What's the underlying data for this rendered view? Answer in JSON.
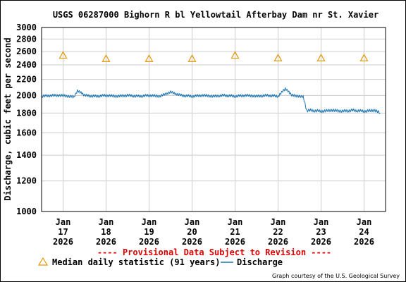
{
  "chart_data": {
    "type": "line",
    "title": "USGS 06287000 Bighorn R bl Yellowtail Afterbay Dam nr St. Xavier",
    "ylabel": "Discharge, cubic feet per second",
    "xlabel": "",
    "y_scale": "log",
    "ylim": [
      1000,
      3000
    ],
    "y_ticks": [
      1000,
      1200,
      1400,
      1600,
      1800,
      2000,
      2200,
      2400,
      2600,
      2800,
      3000
    ],
    "x_ticks": [
      {
        "month": "Jan",
        "day": "17",
        "year": "2026",
        "date": "2026-01-17"
      },
      {
        "month": "Jan",
        "day": "18",
        "year": "2026",
        "date": "2026-01-18"
      },
      {
        "month": "Jan",
        "day": "19",
        "year": "2026",
        "date": "2026-01-19"
      },
      {
        "month": "Jan",
        "day": "20",
        "year": "2026",
        "date": "2026-01-20"
      },
      {
        "month": "Jan",
        "day": "21",
        "year": "2026",
        "date": "2026-01-21"
      },
      {
        "month": "Jan",
        "day": "22",
        "year": "2026",
        "date": "2026-01-22"
      },
      {
        "month": "Jan",
        "day": "23",
        "year": "2026",
        "date": "2026-01-23"
      },
      {
        "month": "Jan",
        "day": "24",
        "year": "2026",
        "date": "2026-01-24"
      }
    ],
    "grid": true,
    "series": [
      {
        "name": "Discharge",
        "color": "#1f77b4",
        "points": [
          {
            "x": "2026-01-16 12:00",
            "y": 1990
          },
          {
            "x": "2026-01-16 18:00",
            "y": 2000
          },
          {
            "x": "2026-01-17 00:00",
            "y": 2000
          },
          {
            "x": "2026-01-17 06:00",
            "y": 1980
          },
          {
            "x": "2026-01-17 08:00",
            "y": 2060
          },
          {
            "x": "2026-01-17 12:00",
            "y": 2000
          },
          {
            "x": "2026-01-17 18:00",
            "y": 1990
          },
          {
            "x": "2026-01-18 00:00",
            "y": 2000
          },
          {
            "x": "2026-01-18 06:00",
            "y": 1990
          },
          {
            "x": "2026-01-18 12:00",
            "y": 2000
          },
          {
            "x": "2026-01-18 18:00",
            "y": 1990
          },
          {
            "x": "2026-01-19 00:00",
            "y": 2000
          },
          {
            "x": "2026-01-19 06:00",
            "y": 1990
          },
          {
            "x": "2026-01-19 12:00",
            "y": 2040
          },
          {
            "x": "2026-01-19 18:00",
            "y": 2000
          },
          {
            "x": "2026-01-20 00:00",
            "y": 1990
          },
          {
            "x": "2026-01-20 06:00",
            "y": 2000
          },
          {
            "x": "2026-01-20 12:00",
            "y": 1990
          },
          {
            "x": "2026-01-20 18:00",
            "y": 2000
          },
          {
            "x": "2026-01-21 00:00",
            "y": 1990
          },
          {
            "x": "2026-01-21 06:00",
            "y": 2000
          },
          {
            "x": "2026-01-21 12:00",
            "y": 1990
          },
          {
            "x": "2026-01-21 18:00",
            "y": 2000
          },
          {
            "x": "2026-01-22 00:00",
            "y": 1990
          },
          {
            "x": "2026-01-22 04:00",
            "y": 2080
          },
          {
            "x": "2026-01-22 08:00",
            "y": 2000
          },
          {
            "x": "2026-01-22 12:00",
            "y": 1990
          },
          {
            "x": "2026-01-22 14:00",
            "y": 1990
          },
          {
            "x": "2026-01-22 16:00",
            "y": 1820
          },
          {
            "x": "2026-01-22 18:00",
            "y": 1830
          },
          {
            "x": "2026-01-23 00:00",
            "y": 1820
          },
          {
            "x": "2026-01-23 06:00",
            "y": 1830
          },
          {
            "x": "2026-01-23 12:00",
            "y": 1820
          },
          {
            "x": "2026-01-23 18:00",
            "y": 1830
          },
          {
            "x": "2026-01-24 00:00",
            "y": 1820
          },
          {
            "x": "2026-01-24 06:00",
            "y": 1830
          },
          {
            "x": "2026-01-24 09:00",
            "y": 1800
          }
        ]
      },
      {
        "name": "Median daily statistic (91 years)",
        "color": "#e69500",
        "marker": "triangle",
        "points": [
          {
            "x": "2026-01-17",
            "y": 2540
          },
          {
            "x": "2026-01-18",
            "y": 2490
          },
          {
            "x": "2026-01-19",
            "y": 2490
          },
          {
            "x": "2026-01-20",
            "y": 2490
          },
          {
            "x": "2026-01-21",
            "y": 2540
          },
          {
            "x": "2026-01-22",
            "y": 2500
          },
          {
            "x": "2026-01-23",
            "y": 2500
          },
          {
            "x": "2026-01-24",
            "y": 2500
          }
        ]
      }
    ],
    "legend": {
      "median_label": "Median daily statistic (91 years)",
      "discharge_label": "Discharge",
      "placement": "bottom"
    },
    "annotation": "---- Provisional Data Subject to Revision ----",
    "credit": "Graph courtesy of the U.S. Geological Survey",
    "colors": {
      "plot_border": "#000000",
      "grid": "#cccccc",
      "discharge": "#1f77b4",
      "median": "#e69500",
      "annotation": "#dd0000"
    }
  }
}
